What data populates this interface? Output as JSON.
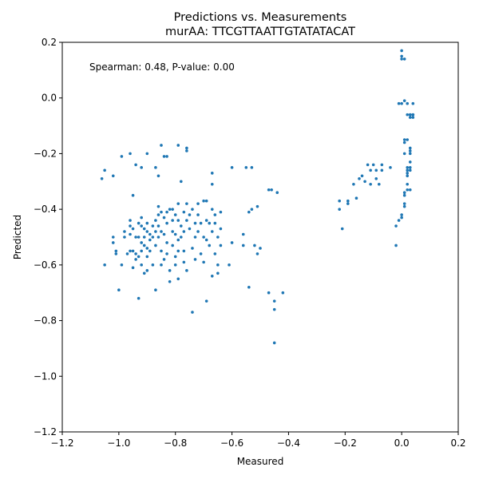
{
  "chart_data": {
    "type": "scatter",
    "title": "Predictions vs. Measurements",
    "subtitle": "murAA: TTCGTTAATTGTATATACAT",
    "xlabel": "Measured",
    "ylabel": "Predicted",
    "xlim": [
      -1.2,
      0.2
    ],
    "ylim": [
      -1.2,
      0.2
    ],
    "xticks": [
      -1.2,
      -1.0,
      -0.8,
      -0.6,
      -0.4,
      -0.2,
      0.0,
      0.2
    ],
    "xtick_labels": [
      "−1.2",
      "−1.0",
      "−0.8",
      "−0.6",
      "−0.4",
      "−0.2",
      "0.0",
      "0.2"
    ],
    "yticks": [
      -1.2,
      -1.0,
      -0.8,
      -0.6,
      -0.4,
      -0.2,
      0.0,
      0.2
    ],
    "ytick_labels": [
      "−1.2",
      "−1.0",
      "−0.8",
      "−0.6",
      "−0.4",
      "−0.2",
      "0.0",
      "0.2"
    ],
    "grid": false,
    "annotation": "Spearman: 0.48, P-value: 0.00",
    "marker_color": "#1f77b4",
    "points": [
      [
        -1.06,
        -0.29
      ],
      [
        -1.05,
        -0.26
      ],
      [
        -1.02,
        -0.28
      ],
      [
        -0.99,
        -0.21
      ],
      [
        -0.96,
        -0.2
      ],
      [
        -0.94,
        -0.24
      ],
      [
        -0.92,
        -0.25
      ],
      [
        -0.9,
        -0.2
      ],
      [
        -0.87,
        -0.25
      ],
      [
        -0.85,
        -0.17
      ],
      [
        -0.84,
        -0.21
      ],
      [
        -0.86,
        -0.28
      ],
      [
        -0.83,
        -0.21
      ],
      [
        -0.79,
        -0.17
      ],
      [
        -0.76,
        -0.18
      ],
      [
        -0.76,
        -0.19
      ],
      [
        -0.78,
        -0.3
      ],
      [
        -0.67,
        -0.27
      ],
      [
        -0.67,
        -0.31
      ],
      [
        -0.6,
        -0.25
      ],
      [
        -0.55,
        -0.25
      ],
      [
        -0.53,
        -0.25
      ],
      [
        -0.47,
        -0.33
      ],
      [
        -0.46,
        -0.33
      ],
      [
        -0.44,
        -0.34
      ],
      [
        -0.54,
        -0.41
      ],
      [
        -0.53,
        -0.4
      ],
      [
        -0.51,
        -0.39
      ],
      [
        -1.05,
        -0.6
      ],
      [
        -1.02,
        -0.52
      ],
      [
        -1.02,
        -0.5
      ],
      [
        -1.01,
        -0.55
      ],
      [
        -1.01,
        -0.56
      ],
      [
        -1.0,
        -0.69
      ],
      [
        -0.99,
        -0.6
      ],
      [
        -0.98,
        -0.5
      ],
      [
        -0.98,
        -0.48
      ],
      [
        -0.97,
        -0.56
      ],
      [
        -0.96,
        -0.46
      ],
      [
        -0.96,
        -0.44
      ],
      [
        -0.96,
        -0.49
      ],
      [
        -0.96,
        -0.55
      ],
      [
        -0.95,
        -0.35
      ],
      [
        -0.95,
        -0.47
      ],
      [
        -0.95,
        -0.55
      ],
      [
        -0.95,
        -0.61
      ],
      [
        -0.94,
        -0.5
      ],
      [
        -0.94,
        -0.56
      ],
      [
        -0.94,
        -0.58
      ],
      [
        -0.93,
        -0.72
      ],
      [
        -0.93,
        -0.45
      ],
      [
        -0.93,
        -0.5
      ],
      [
        -0.93,
        -0.57
      ],
      [
        -0.92,
        -0.43
      ],
      [
        -0.92,
        -0.46
      ],
      [
        -0.92,
        -0.52
      ],
      [
        -0.92,
        -0.55
      ],
      [
        -0.92,
        -0.6
      ],
      [
        -0.91,
        -0.47
      ],
      [
        -0.91,
        -0.5
      ],
      [
        -0.91,
        -0.53
      ],
      [
        -0.91,
        -0.63
      ],
      [
        -0.9,
        -0.45
      ],
      [
        -0.9,
        -0.48
      ],
      [
        -0.9,
        -0.54
      ],
      [
        -0.9,
        -0.57
      ],
      [
        -0.9,
        -0.62
      ],
      [
        -0.89,
        -0.49
      ],
      [
        -0.89,
        -0.51
      ],
      [
        -0.89,
        -0.55
      ],
      [
        -0.88,
        -0.46
      ],
      [
        -0.88,
        -0.5
      ],
      [
        -0.88,
        -0.6
      ],
      [
        -0.87,
        -0.44
      ],
      [
        -0.87,
        -0.48
      ],
      [
        -0.87,
        -0.53
      ],
      [
        -0.87,
        -0.69
      ],
      [
        -0.86,
        -0.42
      ],
      [
        -0.86,
        -0.46
      ],
      [
        -0.86,
        -0.5
      ],
      [
        -0.86,
        -0.39
      ],
      [
        -0.85,
        -0.41
      ],
      [
        -0.85,
        -0.48
      ],
      [
        -0.85,
        -0.55
      ],
      [
        -0.85,
        -0.6
      ],
      [
        -0.84,
        -0.43
      ],
      [
        -0.84,
        -0.49
      ],
      [
        -0.84,
        -0.58
      ],
      [
        -0.83,
        -0.41
      ],
      [
        -0.83,
        -0.45
      ],
      [
        -0.83,
        -0.52
      ],
      [
        -0.83,
        -0.56
      ],
      [
        -0.82,
        -0.62
      ],
      [
        -0.82,
        -0.66
      ],
      [
        -0.82,
        -0.4
      ],
      [
        -0.81,
        -0.44
      ],
      [
        -0.81,
        -0.48
      ],
      [
        -0.81,
        -0.53
      ],
      [
        -0.81,
        -0.4
      ],
      [
        -0.8,
        -0.42
      ],
      [
        -0.8,
        -0.49
      ],
      [
        -0.8,
        -0.57
      ],
      [
        -0.8,
        -0.6
      ],
      [
        -0.79,
        -0.38
      ],
      [
        -0.79,
        -0.44
      ],
      [
        -0.79,
        -0.51
      ],
      [
        -0.79,
        -0.55
      ],
      [
        -0.79,
        -0.65
      ],
      [
        -0.78,
        -0.46
      ],
      [
        -0.78,
        -0.5
      ],
      [
        -0.77,
        -0.41
      ],
      [
        -0.77,
        -0.48
      ],
      [
        -0.77,
        -0.55
      ],
      [
        -0.77,
        -0.59
      ],
      [
        -0.76,
        -0.38
      ],
      [
        -0.76,
        -0.44
      ],
      [
        -0.76,
        -0.62
      ],
      [
        -0.75,
        -0.42
      ],
      [
        -0.75,
        -0.47
      ],
      [
        -0.74,
        -0.54
      ],
      [
        -0.74,
        -0.77
      ],
      [
        -0.74,
        -0.4
      ],
      [
        -0.73,
        -0.45
      ],
      [
        -0.73,
        -0.5
      ],
      [
        -0.73,
        -0.58
      ],
      [
        -0.72,
        -0.38
      ],
      [
        -0.72,
        -0.42
      ],
      [
        -0.72,
        -0.48
      ],
      [
        -0.71,
        -0.45
      ],
      [
        -0.71,
        -0.56
      ],
      [
        -0.7,
        -0.37
      ],
      [
        -0.7,
        -0.5
      ],
      [
        -0.7,
        -0.59
      ],
      [
        -0.69,
        -0.37
      ],
      [
        -0.69,
        -0.44
      ],
      [
        -0.69,
        -0.51
      ],
      [
        -0.69,
        -0.73
      ],
      [
        -0.68,
        -0.45
      ],
      [
        -0.68,
        -0.53
      ],
      [
        -0.67,
        -0.64
      ],
      [
        -0.67,
        -0.4
      ],
      [
        -0.67,
        -0.48
      ],
      [
        -0.66,
        -0.56
      ],
      [
        -0.66,
        -0.42
      ],
      [
        -0.66,
        -0.45
      ],
      [
        -0.65,
        -0.5
      ],
      [
        -0.65,
        -0.6
      ],
      [
        -0.65,
        -0.63
      ],
      [
        -0.64,
        -0.47
      ],
      [
        -0.64,
        -0.53
      ],
      [
        -0.64,
        -0.41
      ],
      [
        -0.61,
        -0.6
      ],
      [
        -0.6,
        -0.52
      ],
      [
        -0.56,
        -0.49
      ],
      [
        -0.56,
        -0.53
      ],
      [
        -0.54,
        -0.68
      ],
      [
        -0.52,
        -0.53
      ],
      [
        -0.51,
        -0.56
      ],
      [
        -0.5,
        -0.54
      ],
      [
        -0.47,
        -0.7
      ],
      [
        -0.45,
        -0.73
      ],
      [
        -0.45,
        -0.76
      ],
      [
        -0.42,
        -0.7
      ],
      [
        -0.45,
        -0.88
      ],
      [
        -0.22,
        -0.37
      ],
      [
        -0.22,
        -0.4
      ],
      [
        -0.21,
        -0.47
      ],
      [
        -0.19,
        -0.37
      ],
      [
        -0.19,
        -0.38
      ],
      [
        -0.17,
        -0.31
      ],
      [
        -0.16,
        -0.36
      ],
      [
        -0.15,
        -0.29
      ],
      [
        -0.14,
        -0.28
      ],
      [
        -0.13,
        -0.3
      ],
      [
        -0.12,
        -0.24
      ],
      [
        -0.11,
        -0.26
      ],
      [
        -0.11,
        -0.31
      ],
      [
        -0.1,
        -0.24
      ],
      [
        -0.09,
        -0.29
      ],
      [
        -0.09,
        -0.26
      ],
      [
        -0.08,
        -0.31
      ],
      [
        -0.07,
        -0.24
      ],
      [
        -0.07,
        -0.26
      ],
      [
        -0.04,
        -0.25
      ],
      [
        -0.02,
        -0.46
      ],
      [
        -0.02,
        -0.53
      ],
      [
        -0.01,
        -0.02
      ],
      [
        -0.01,
        -0.44
      ],
      [
        0.0,
        0.17
      ],
      [
        0.0,
        0.15
      ],
      [
        0.0,
        0.14
      ],
      [
        0.0,
        -0.02
      ],
      [
        0.0,
        -0.42
      ],
      [
        0.0,
        -0.43
      ],
      [
        0.01,
        0.14
      ],
      [
        0.01,
        -0.15
      ],
      [
        0.01,
        -0.16
      ],
      [
        0.01,
        -0.2
      ],
      [
        0.01,
        -0.38
      ],
      [
        0.01,
        -0.39
      ],
      [
        0.01,
        -0.01
      ],
      [
        0.01,
        -0.34
      ],
      [
        0.01,
        -0.35
      ],
      [
        0.02,
        -0.15
      ],
      [
        0.02,
        -0.25
      ],
      [
        0.02,
        -0.26
      ],
      [
        0.02,
        -0.27
      ],
      [
        0.02,
        -0.28
      ],
      [
        0.02,
        -0.31
      ],
      [
        0.02,
        -0.06
      ],
      [
        0.02,
        -0.02
      ],
      [
        0.02,
        -0.33
      ],
      [
        0.03,
        -0.06
      ],
      [
        0.03,
        -0.07
      ],
      [
        0.03,
        -0.18
      ],
      [
        0.03,
        -0.19
      ],
      [
        0.03,
        -0.2
      ],
      [
        0.03,
        -0.23
      ],
      [
        0.03,
        -0.25
      ],
      [
        0.03,
        -0.26
      ],
      [
        0.03,
        -0.33
      ],
      [
        0.04,
        -0.06
      ],
      [
        0.04,
        -0.07
      ],
      [
        0.04,
        -0.02
      ],
      [
        0.04,
        -0.06
      ],
      [
        0.03,
        -0.06
      ]
    ]
  }
}
